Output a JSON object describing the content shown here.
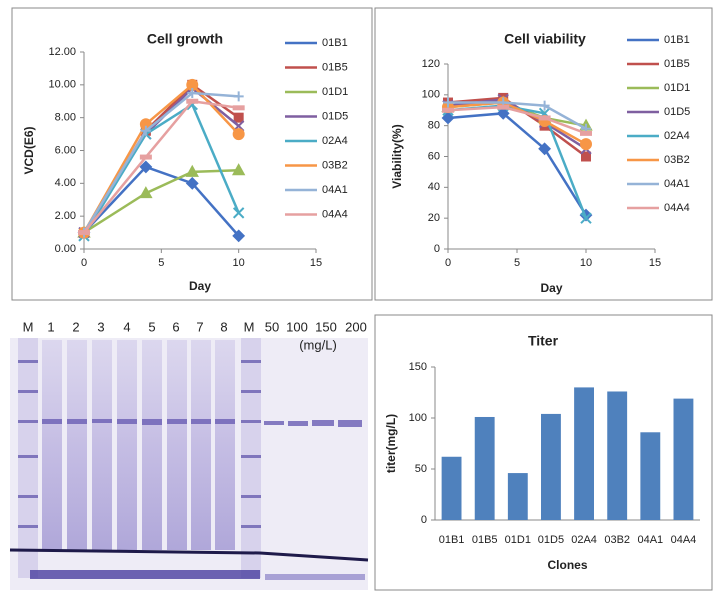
{
  "chart_data": [
    {
      "type": "line",
      "title": "Cell growth",
      "xlabel": "Day",
      "ylabel": "VCD(E6)",
      "x": [
        0,
        4,
        7,
        10
      ],
      "xlim": [
        0,
        15
      ],
      "xticks": [
        0,
        5,
        10,
        15
      ],
      "ylim": [
        0,
        12
      ],
      "yticks": [
        {
          "value": 0,
          "label": "0.00"
        },
        {
          "value": 2,
          "label": "2.00"
        },
        {
          "value": 4,
          "label": "4.00"
        },
        {
          "value": 6,
          "label": "6.00"
        },
        {
          "value": 8,
          "label": "8.00"
        },
        {
          "value": 10,
          "label": "10.00"
        },
        {
          "value": 12,
          "label": "12.00"
        }
      ],
      "legend": "upper right",
      "series": [
        {
          "name": "01B1",
          "color": "#4472c4",
          "values": [
            1.0,
            5.0,
            4.0,
            0.8
          ]
        },
        {
          "name": "01B5",
          "color": "#c0504d",
          "values": [
            1.0,
            7.2,
            10.0,
            8.0
          ]
        },
        {
          "name": "01D1",
          "color": "#9bbb59",
          "values": [
            1.0,
            3.4,
            4.7,
            4.8
          ]
        },
        {
          "name": "01D5",
          "color": "#7f5fa0",
          "values": [
            1.0,
            7.0,
            9.8,
            7.5
          ]
        },
        {
          "name": "02A4",
          "color": "#4bacc6",
          "values": [
            0.8,
            7.0,
            8.8,
            2.2
          ]
        },
        {
          "name": "03B2",
          "color": "#f79646",
          "values": [
            1.0,
            7.6,
            10.0,
            7.0
          ]
        },
        {
          "name": "04A1",
          "color": "#95b3d7",
          "values": [
            1.0,
            7.2,
            9.5,
            9.3
          ]
        },
        {
          "name": "04A4",
          "color": "#e6a0a0",
          "values": [
            1.0,
            5.6,
            9.0,
            8.6
          ]
        }
      ]
    },
    {
      "type": "line",
      "title": "Cell viability",
      "xlabel": "Day",
      "ylabel": "Viability(%)",
      "x": [
        0,
        4,
        7,
        10
      ],
      "xlim": [
        0,
        15
      ],
      "xticks": [
        0,
        5,
        10,
        15
      ],
      "ylim": [
        0,
        120
      ],
      "yticks": [
        0,
        20,
        40,
        60,
        80,
        100,
        120
      ],
      "legend": "upper right",
      "series": [
        {
          "name": "01B1",
          "color": "#4472c4",
          "values": [
            85,
            88,
            65,
            22
          ]
        },
        {
          "name": "01B5",
          "color": "#c0504d",
          "values": [
            95,
            98,
            80,
            60
          ]
        },
        {
          "name": "01D1",
          "color": "#9bbb59",
          "values": [
            92,
            95,
            85,
            80
          ]
        },
        {
          "name": "01D5",
          "color": "#7f5fa0",
          "values": [
            93,
            97,
            82,
            65
          ]
        },
        {
          "name": "02A4",
          "color": "#4bacc6",
          "values": [
            90,
            93,
            88,
            20
          ]
        },
        {
          "name": "03B2",
          "color": "#f79646",
          "values": [
            92,
            95,
            83,
            68
          ]
        },
        {
          "name": "04A1",
          "color": "#95b3d7",
          "values": [
            95,
            95,
            93,
            78
          ]
        },
        {
          "name": "04A4",
          "color": "#e6a0a0",
          "values": [
            90,
            92,
            85,
            75
          ]
        }
      ]
    },
    {
      "type": "bar",
      "title": "Titer",
      "xlabel": "Clones",
      "ylabel": "titer(mg/L)",
      "categories": [
        "01B1",
        "01B5",
        "01D1",
        "01D5",
        "02A4",
        "03B2",
        "04A1",
        "04A4"
      ],
      "values": [
        62,
        101,
        46,
        104,
        130,
        126,
        86,
        119
      ],
      "color": "#4f81bd",
      "ylim": [
        0,
        150
      ],
      "yticks": [
        0,
        50,
        100,
        150
      ]
    }
  ],
  "gel": {
    "unit": "(mg/L)",
    "lanes": [
      {
        "label": "M",
        "color": "#222222"
      },
      {
        "label": "1",
        "color": "#c00000"
      },
      {
        "label": "2",
        "color": "#c00000"
      },
      {
        "label": "3",
        "color": "#c00000"
      },
      {
        "label": "4",
        "color": "#c00000"
      },
      {
        "label": "5",
        "color": "#c00000"
      },
      {
        "label": "6",
        "color": "#c00000"
      },
      {
        "label": "7",
        "color": "#c00000"
      },
      {
        "label": "8",
        "color": "#c00000"
      },
      {
        "label": "M",
        "color": "#c00000"
      },
      {
        "label": "50",
        "color": "#222222"
      },
      {
        "label": "100",
        "color": "#222222"
      },
      {
        "label": "150",
        "color": "#222222"
      },
      {
        "label": "200",
        "color": "#222222"
      }
    ]
  }
}
